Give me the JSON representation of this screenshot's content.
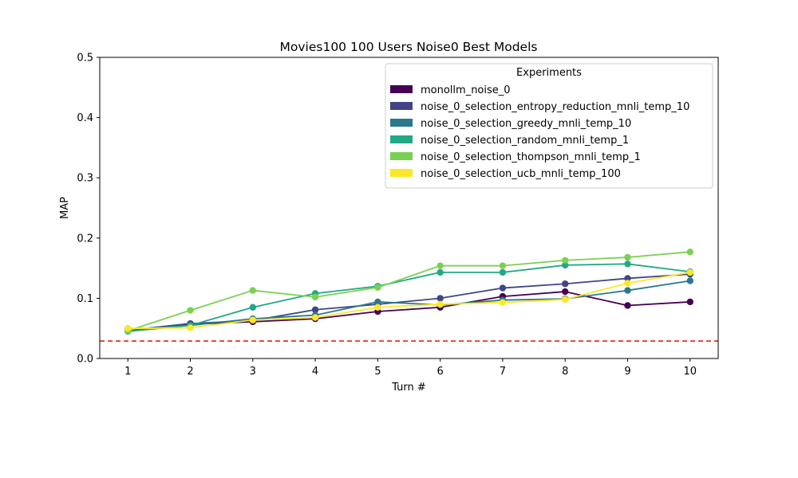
{
  "chart_data": {
    "type": "line",
    "title": "Movies100 100 Users Noise0 Best Models",
    "xlabel": "Turn #",
    "ylabel": "MAP",
    "x": [
      1,
      2,
      3,
      4,
      5,
      6,
      7,
      8,
      9,
      10
    ],
    "xlim": [
      0.55,
      10.45
    ],
    "ylim": [
      0.0,
      0.5
    ],
    "yticks": [
      "0.0",
      "0.1",
      "0.2",
      "0.3",
      "0.4",
      "0.5"
    ],
    "xticks": [
      "1",
      "2",
      "3",
      "4",
      "5",
      "6",
      "7",
      "8",
      "9",
      "10"
    ],
    "grid": false,
    "legend": {
      "title": "Experiments",
      "placement": "top-right"
    },
    "baseline": {
      "y": 0.029,
      "color": "#e0201b",
      "style": "dashed"
    },
    "series": [
      {
        "name": "monollm_noise_0",
        "color": "#440154",
        "values": [
          0.047,
          0.057,
          0.061,
          0.066,
          0.078,
          0.085,
          0.103,
          0.111,
          0.088,
          0.094
        ]
      },
      {
        "name": "noise_0_selection_entropy_reduction_mnli_temp_10",
        "color": "#414487",
        "values": [
          0.047,
          0.058,
          0.063,
          0.081,
          0.09,
          0.1,
          0.117,
          0.124,
          0.133,
          0.14
        ]
      },
      {
        "name": "noise_0_selection_greedy_mnli_temp_10",
        "color": "#2a788e",
        "values": [
          0.048,
          0.055,
          0.066,
          0.072,
          0.094,
          0.089,
          0.097,
          0.099,
          0.113,
          0.129
        ]
      },
      {
        "name": "noise_0_selection_random_mnli_temp_1",
        "color": "#22a884",
        "values": [
          0.045,
          0.055,
          0.085,
          0.108,
          0.12,
          0.143,
          0.143,
          0.155,
          0.157,
          0.144
        ]
      },
      {
        "name": "noise_0_selection_thompson_mnli_temp_1",
        "color": "#7ad151",
        "values": [
          0.046,
          0.08,
          0.113,
          0.102,
          0.118,
          0.154,
          0.154,
          0.163,
          0.168,
          0.177
        ]
      },
      {
        "name": "noise_0_selection_ucb_mnli_temp_100",
        "color": "#fde725",
        "values": [
          0.05,
          0.051,
          0.064,
          0.068,
          0.085,
          0.09,
          0.093,
          0.098,
          0.125,
          0.143
        ]
      }
    ]
  }
}
